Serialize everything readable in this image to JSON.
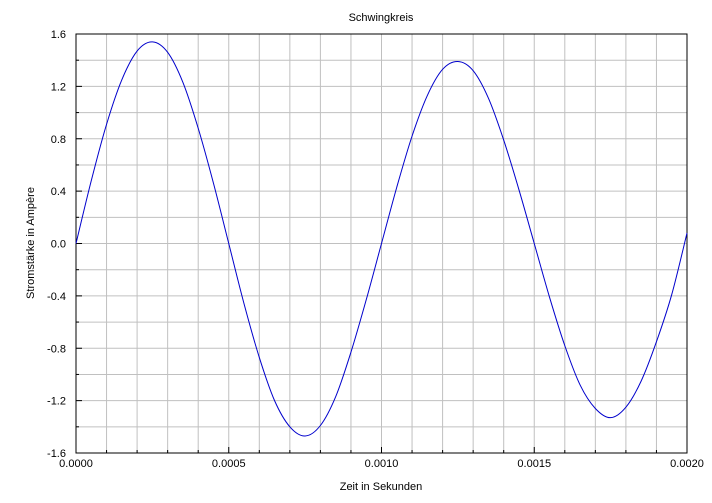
{
  "chart_data": {
    "type": "line",
    "title": "Schwingkreis",
    "xlabel": "Zeit in Sekunden",
    "ylabel": "Stromstärke in Ampère",
    "xlim": [
      0,
      0.002
    ],
    "ylim": [
      -1.6,
      1.6
    ],
    "x_ticks": [
      "0.0000",
      "0.0005",
      "0.0010",
      "0.0015",
      "0.0020"
    ],
    "y_ticks": [
      "-1.6",
      "-1.2",
      "-0.8",
      "-0.4",
      "0.0",
      "0.4",
      "0.8",
      "1.2",
      "1.6"
    ],
    "grid": true,
    "line_color": "#0000cc",
    "series": [
      {
        "x": [
          0,
          5e-05,
          0.0001,
          0.00015,
          0.0002,
          0.00025,
          0.0003,
          0.00035,
          0.0004,
          0.00045,
          0.0005,
          0.00055,
          0.0006,
          0.00065,
          0.0007,
          0.00075,
          0.0008,
          0.00085,
          0.0009,
          0.00095,
          0.001,
          0.00105,
          0.0011,
          0.00115,
          0.0012,
          0.00125,
          0.0013,
          0.00135,
          0.0014,
          0.00145,
          0.0015,
          0.00155,
          0.0016,
          0.00165,
          0.0017,
          0.00175,
          0.0018,
          0.00185,
          0.0019,
          0.00195,
          0.002
        ],
        "values": [
          0.0,
          0.48,
          0.91,
          1.25,
          1.47,
          1.54,
          1.46,
          1.23,
          0.88,
          0.46,
          0.0,
          -0.46,
          -0.87,
          -1.2,
          -1.4,
          -1.47,
          -1.39,
          -1.17,
          -0.83,
          -0.43,
          0.0,
          0.43,
          0.82,
          1.13,
          1.33,
          1.39,
          1.32,
          1.11,
          0.79,
          0.41,
          0.0,
          -0.41,
          -0.78,
          -1.08,
          -1.26,
          -1.33,
          -1.25,
          -1.05,
          -0.75,
          -0.39,
          0.08
        ]
      }
    ]
  }
}
